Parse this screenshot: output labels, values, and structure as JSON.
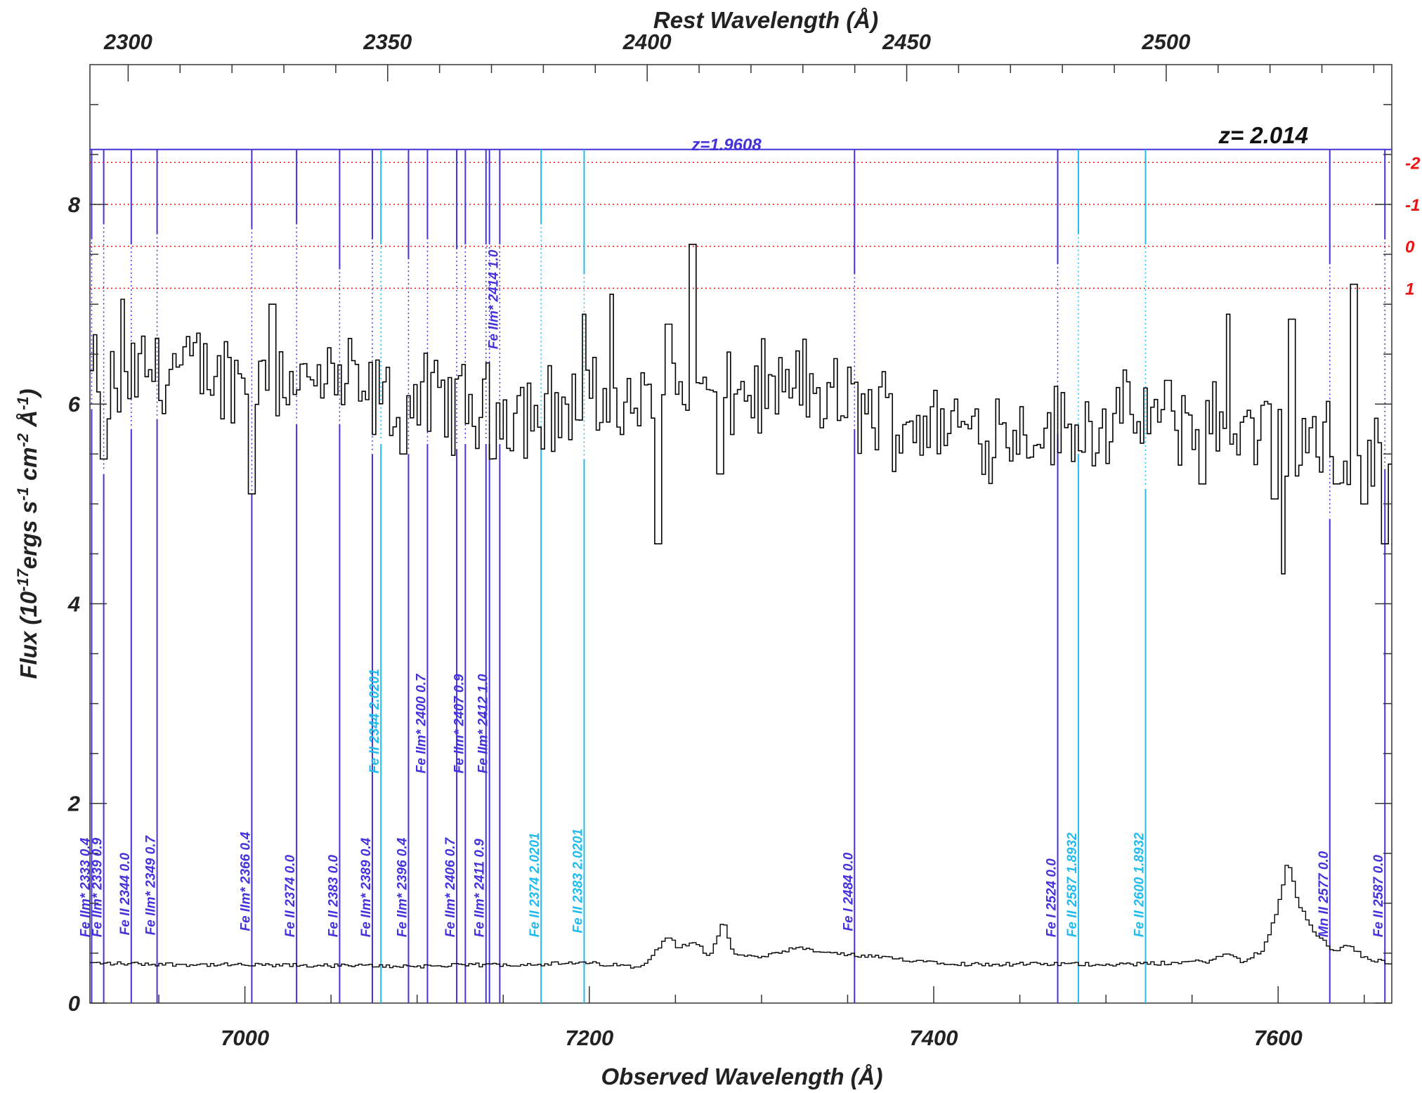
{
  "chart_data": {
    "type": "line",
    "title": "",
    "xlabel": "Observed Wavelength (Å)",
    "ylabel": "Flux (10-17ergs s-1 cm-2 Å-1)",
    "ylabel_parts": {
      "pre": "Flux (10",
      "sup1": "-17",
      "mid1": "ergs s",
      "sup2": "-1",
      "mid2": " cm",
      "sup3": "-2",
      "mid3": " Å",
      "sup4": "-1",
      "post": ")"
    },
    "top_xlabel": "Rest Wavelength (Å)",
    "xlim": [
      6910,
      7666
    ],
    "ylim": [
      0,
      9.4
    ],
    "x_ticks": [
      "7000",
      "7200",
      "7400",
      "7600"
    ],
    "x_tick_values": [
      7000,
      7200,
      7400,
      7600
    ],
    "y_ticks": [
      "0",
      "2",
      "4",
      "6",
      "8"
    ],
    "y_tick_values": [
      0,
      2,
      4,
      6,
      8
    ],
    "rest_ticks": [
      "2300",
      "2350",
      "2400",
      "2450",
      "2500"
    ],
    "rest_tick_values": [
      2300,
      2350,
      2400,
      2450,
      2500
    ],
    "system_redshift_label": "z=  2.014",
    "absorber_label": "z=1.9608",
    "sigma_labels": [
      "-2",
      "-1",
      "0",
      "1"
    ],
    "sigma_y": [
      8.42,
      8.0,
      7.58,
      7.16
    ],
    "colors": {
      "spectrum": "#000000",
      "absorber_1": "#4433dd",
      "absorber_2": "#22bbee",
      "sigma": "#ee1111"
    },
    "flux_anchors": {
      "x": [
        6910,
        6925,
        6940,
        6960,
        6980,
        7000,
        7020,
        7040,
        7060,
        7080,
        7100,
        7120,
        7140,
        7160,
        7180,
        7200,
        7220,
        7240,
        7260,
        7280,
        7300,
        7320,
        7340,
        7360,
        7380,
        7400,
        7420,
        7440,
        7460,
        7480,
        7500,
        7520,
        7540,
        7560,
        7580,
        7600,
        7620,
        7640,
        7666
      ],
      "y": [
        6.3,
        6.1,
        6.35,
        6.35,
        6.3,
        6.25,
        6.3,
        6.2,
        6.2,
        6.0,
        6.05,
        6.0,
        5.95,
        5.95,
        5.95,
        6.0,
        5.95,
        6.0,
        6.05,
        6.05,
        6.15,
        6.1,
        6.05,
        5.95,
        5.85,
        5.8,
        5.75,
        5.75,
        5.75,
        5.75,
        5.8,
        5.85,
        5.85,
        5.8,
        5.75,
        5.7,
        5.6,
        5.5,
        5.4
      ]
    },
    "flux_features": [
      {
        "x": 6918,
        "y": 5.45
      },
      {
        "x": 6929,
        "y": 7.05
      },
      {
        "x": 7004,
        "y": 5.1
      },
      {
        "x": 7016,
        "y": 7.0
      },
      {
        "x": 7092,
        "y": 5.5
      },
      {
        "x": 7143,
        "y": 5.45
      },
      {
        "x": 7173,
        "y": 5.55
      },
      {
        "x": 7197,
        "y": 6.9
      },
      {
        "x": 7213,
        "y": 7.1
      },
      {
        "x": 7240,
        "y": 4.6
      },
      {
        "x": 7246,
        "y": 6.8
      },
      {
        "x": 7260,
        "y": 7.6
      },
      {
        "x": 7276,
        "y": 5.3
      },
      {
        "x": 7325,
        "y": 6.65
      },
      {
        "x": 7556,
        "y": 5.2
      },
      {
        "x": 7571,
        "y": 6.9
      },
      {
        "x": 7598,
        "y": 5.05
      },
      {
        "x": 7603,
        "y": 4.3
      },
      {
        "x": 7608,
        "y": 6.85
      },
      {
        "x": 7634,
        "y": 5.2
      },
      {
        "x": 7644,
        "y": 7.2
      },
      {
        "x": 7650,
        "y": 5.0
      },
      {
        "x": 7662,
        "y": 4.6
      }
    ],
    "error_anchors": {
      "x": [
        6910,
        7000,
        7100,
        7200,
        7230,
        7240,
        7246,
        7252,
        7262,
        7270,
        7278,
        7284,
        7300,
        7320,
        7340,
        7380,
        7420,
        7470,
        7520,
        7560,
        7572,
        7580,
        7592,
        7600,
        7606,
        7612,
        7622,
        7632,
        7642,
        7650,
        7666
      ],
      "y": [
        0.4,
        0.38,
        0.37,
        0.4,
        0.36,
        0.55,
        0.68,
        0.55,
        0.62,
        0.45,
        0.82,
        0.5,
        0.45,
        0.55,
        0.5,
        0.44,
        0.39,
        0.39,
        0.39,
        0.42,
        0.5,
        0.4,
        0.55,
        0.95,
        1.45,
        1.0,
        0.7,
        0.52,
        0.58,
        0.45,
        0.4
      ]
    },
    "absorption_lines": [
      {
        "label": "Fe IIm* 2333 0.4",
        "x": 6911,
        "color": "#4433dd",
        "top": 7.65,
        "bottom": 5.95,
        "label_y": 0.66
      },
      {
        "label": "Fe IIm* 2339 0.9",
        "x": 6918,
        "color": "#4433dd",
        "top": 7.8,
        "bottom": 5.3,
        "label_y": 0.66
      },
      {
        "label": "Fe II 2344 0.0",
        "x": 6934,
        "color": "#4433dd",
        "top": 7.6,
        "bottom": 5.75,
        "label_y": 0.68
      },
      {
        "label": "Fe IIm* 2349 0.7",
        "x": 6949,
        "color": "#4433dd",
        "top": 7.7,
        "bottom": 5.85,
        "label_y": 0.68
      },
      {
        "label": "Fe IIm* 2366 0.4",
        "x": 7004,
        "color": "#4433dd",
        "top": 7.75,
        "bottom": 5.1,
        "label_y": 0.72
      },
      {
        "label": "Fe II 2374 0.0",
        "x": 7030,
        "color": "#4433dd",
        "top": 7.8,
        "bottom": 5.8,
        "label_y": 0.66
      },
      {
        "label": "Fe II 2383 0.0",
        "x": 7055,
        "color": "#4433dd",
        "top": 7.35,
        "bottom": 5.8,
        "label_y": 0.66
      },
      {
        "label": "Fe IIm* 2389 0.4",
        "x": 7074,
        "color": "#4433dd",
        "top": 7.65,
        "bottom": 5.5,
        "label_y": 0.66
      },
      {
        "label": "Fe II 2344 2.0201",
        "x": 7079,
        "color": "#22bbee",
        "top": 7.6,
        "bottom": 5.6,
        "label_y": 2.3
      },
      {
        "label": "Fe IIm* 2396 0.4",
        "x": 7095,
        "color": "#4433dd",
        "top": 7.45,
        "bottom": 5.5,
        "label_y": 0.66
      },
      {
        "label": "Fe IIm* 2400 0.7",
        "x": 7106,
        "color": "#4433dd",
        "top": 7.65,
        "bottom": 5.6,
        "label_y": 2.3
      },
      {
        "label": "Fe IIm* 2406 0.7",
        "x": 7123,
        "color": "#4433dd",
        "top": 7.55,
        "bottom": 5.55,
        "label_y": 0.66
      },
      {
        "label": "Fe IIm* 2407 0.9",
        "x": 7128,
        "color": "#4433dd",
        "top": 7.6,
        "bottom": 5.6,
        "label_y": 2.3
      },
      {
        "label": "Fe IIm* 2411 0.9",
        "x": 7140,
        "color": "#4433dd",
        "top": 7.6,
        "bottom": 5.6,
        "label_y": 0.66
      },
      {
        "label": "Fe IIm* 2412 1.0",
        "x": 7142,
        "color": "#4433dd",
        "top": 7.6,
        "bottom": 5.6,
        "label_y": 2.3
      },
      {
        "label": "Fe IIm* 2414 1.0",
        "x": 7148,
        "color": "#4433dd",
        "top": 7.6,
        "bottom": 5.6,
        "label_y": 6.55
      },
      {
        "label": "Fe II 2374 2.0201",
        "x": 7172,
        "color": "#22bbee",
        "top": 7.8,
        "bottom": 5.55,
        "label_y": 0.66
      },
      {
        "label": "Fe II 2383 2.0201",
        "x": 7197,
        "color": "#22bbee",
        "top": 7.3,
        "bottom": 5.45,
        "label_y": 0.7
      },
      {
        "label": "Fe I 2484 0.0",
        "x": 7354,
        "color": "#4433dd",
        "top": 7.3,
        "bottom": 5.75,
        "label_y": 0.72
      },
      {
        "label": "Fe I 2524 0.0",
        "x": 7472,
        "color": "#4433dd",
        "top": 7.4,
        "bottom": 5.7,
        "label_y": 0.66
      },
      {
        "label": "Fe II 2587 1.8932",
        "x": 7484,
        "color": "#22bbee",
        "top": 7.7,
        "bottom": 5.5,
        "label_y": 0.66
      },
      {
        "label": "Fe II 2600 1.8932",
        "x": 7523,
        "color": "#22bbee",
        "top": 7.6,
        "bottom": 5.15,
        "label_y": 0.66
      },
      {
        "label": "Mn II 2577 0.0",
        "x": 7630,
        "color": "#4433dd",
        "top": 7.4,
        "bottom": 4.85,
        "label_y": 0.66
      },
      {
        "label": "Fe II 2587 0.0",
        "x": 7662,
        "color": "#4433dd",
        "top": 7.65,
        "bottom": 5.35,
        "label_y": 0.66
      }
    ]
  }
}
